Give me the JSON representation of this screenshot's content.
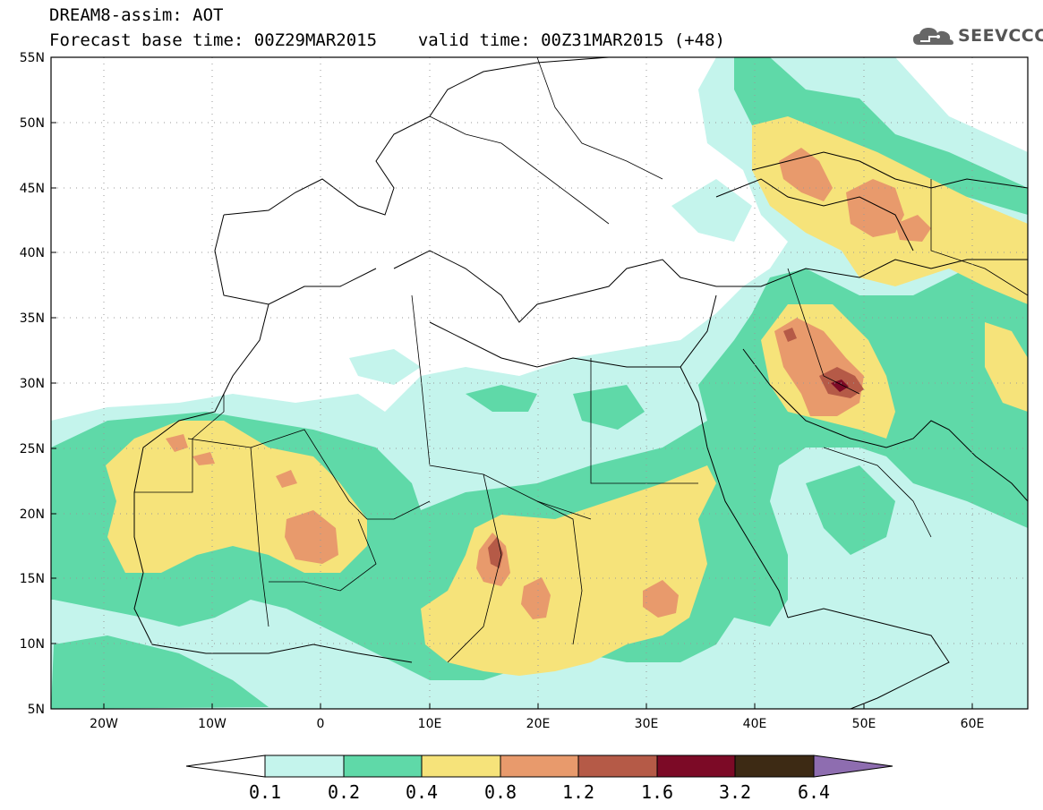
{
  "header": {
    "title": "DREAM8-assim: AOT",
    "base_time_label": "Forecast base time: 00Z29MAR2015",
    "valid_time_label": "valid time: 00Z31MAR2015 (+48)"
  },
  "logo": {
    "text": "SEEVCCC",
    "icon": "cloud-icon"
  },
  "map": {
    "lat_labels": [
      "55N",
      "50N",
      "45N",
      "40N",
      "35N",
      "30N",
      "25N",
      "20N",
      "15N",
      "10N",
      "5N"
    ],
    "lon_labels": [
      "20W",
      "10W",
      "0",
      "10E",
      "20E",
      "30E",
      "40E",
      "50E",
      "60E"
    ],
    "lat_range": [
      5,
      55
    ],
    "lon_range": [
      -25,
      65
    ],
    "grid": "dotted"
  },
  "colorbar": {
    "levels": [
      "0.1",
      "0.2",
      "0.4",
      "0.8",
      "1.2",
      "1.6",
      "3.2",
      "6.4"
    ],
    "colors": [
      "#c4f4ec",
      "#5fd9a8",
      "#f6e37a",
      "#e89a6c",
      "#b55a47",
      "#7c0a26",
      "#3d2a14",
      "#8e6db0"
    ],
    "below_color": "#ffffff"
  }
}
